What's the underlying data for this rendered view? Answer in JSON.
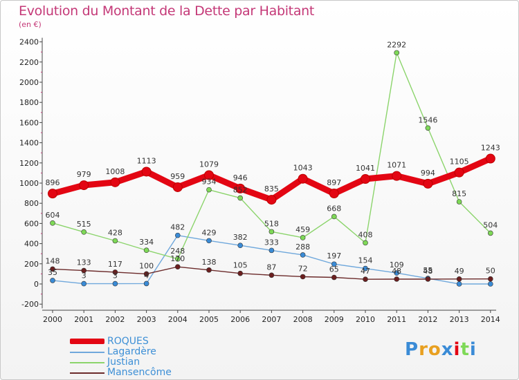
{
  "title": "Evolution du Montant de la Dette par Habitant",
  "subtitle": "(en €)",
  "logo": "Proxiti",
  "chart_data": {
    "type": "line",
    "title": "Evolution du Montant de la Dette par Habitant",
    "subtitle": "(en €)",
    "xlabel": "",
    "ylabel": "",
    "ylim": [
      -200,
      2400
    ],
    "yticks": [
      -200,
      0,
      200,
      400,
      600,
      800,
      1000,
      1200,
      1400,
      1600,
      1800,
      2000,
      2200,
      2400
    ],
    "grid": false,
    "legend_position": "bottom-left",
    "x": [
      "2000",
      "2001",
      "2002",
      "2003",
      "2004",
      "2005",
      "2006",
      "2007",
      "2008",
      "2009",
      "2010",
      "2011",
      "2012",
      "2013",
      "2014"
    ],
    "series": [
      {
        "name": "ROQUES",
        "color": "#e30613",
        "bold": true,
        "values": [
          896,
          979,
          1008,
          1113,
          959,
          1079,
          946,
          835,
          1043,
          897,
          1041,
          1071,
          994,
          1105,
          1243
        ],
        "labels": [
          "896",
          "979",
          "1008",
          "1113",
          "959",
          "1079",
          "946",
          "835",
          "1043",
          "897",
          "1041",
          "1071",
          "994",
          "1105",
          "1243"
        ]
      },
      {
        "name": "Lagardère",
        "color": "#6fa8dc",
        "marker": "#3a8bd6",
        "values": [
          35,
          3,
          3,
          4,
          482,
          429,
          382,
          333,
          288,
          197,
          154,
          109,
          55,
          0,
          0
        ],
        "labels": [
          "35",
          "3",
          "3",
          "4",
          "482",
          "429",
          "382",
          "333",
          "288",
          "197",
          "154",
          "109",
          "55",
          "",
          ""
        ]
      },
      {
        "name": "Justian",
        "color": "#8bd46b",
        "marker": "#7ed957",
        "values": [
          604,
          515,
          428,
          334,
          248,
          934,
          852,
          518,
          459,
          668,
          408,
          2292,
          1546,
          815,
          504
        ],
        "labels": [
          "604",
          "515",
          "428",
          "334",
          "248",
          "934",
          "852",
          "518",
          "459",
          "668",
          "408",
          "2292",
          "1546",
          "815",
          "504"
        ]
      },
      {
        "name": "Mansencôme",
        "color": "#6b2a2a",
        "marker": "#6b1f1f",
        "values": [
          148,
          133,
          117,
          100,
          170,
          138,
          105,
          87,
          72,
          65,
          47,
          48,
          48,
          49,
          50
        ],
        "labels": [
          "148",
          "133",
          "117",
          "100",
          "170",
          "138",
          "105",
          "87",
          "72",
          "65",
          "47",
          "48",
          "48",
          "49",
          "50"
        ]
      }
    ]
  }
}
